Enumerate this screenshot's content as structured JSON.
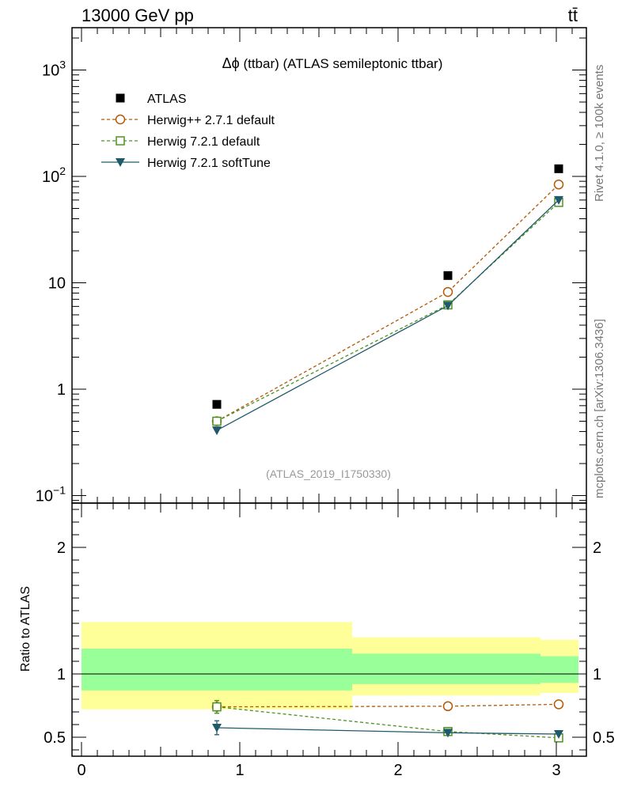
{
  "header": {
    "energy_label": "13000 GeV pp",
    "process_label": "tt̄"
  },
  "side_labels": {
    "rivet": "Rivet 4.1.0, ≥ 100k events",
    "source": "mcplots.cern.ch [arXiv:1306.3436]"
  },
  "chart_data": [
    {
      "type": "line",
      "title_prefix": "Δϕ",
      "title": " (ttbar) (ATLAS semileptonic ttbar)",
      "watermark": "(ATLAS_2019_I1750330)",
      "xlabel": "",
      "ylabel": "",
      "yscale": "log",
      "xlim": [
        -0.06,
        3.19
      ],
      "ylim": [
        0.085,
        2500
      ],
      "y_ticks": [
        {
          "value": 0.1,
          "base": "10",
          "exp": "−1"
        },
        {
          "value": 1,
          "base": "1",
          "exp": ""
        },
        {
          "value": 10,
          "base": "10",
          "exp": ""
        },
        {
          "value": 100,
          "base": "10",
          "exp": "2"
        },
        {
          "value": 1000,
          "base": "10",
          "exp": "3"
        }
      ],
      "legend": [
        {
          "label": "ATLAS",
          "color": "#000000",
          "marker": "square-filled"
        },
        {
          "label": "Herwig++ 2.7.1 default",
          "color": "#b35806",
          "marker": "circle-open",
          "dashed": true
        },
        {
          "label": "Herwig 7.2.1 default",
          "color": "#4d9221",
          "marker": "square-open",
          "dashed": true
        },
        {
          "label": "Herwig 7.2.1 softTune",
          "color": "#1f5a6a",
          "marker": "triangle-down",
          "dashed": false
        }
      ],
      "x": [
        0.855,
        2.315,
        3.015
      ],
      "series": [
        {
          "name": "ATLAS",
          "values": [
            0.72,
            11.7,
            118
          ]
        },
        {
          "name": "Herwig++ 2.7.1 default",
          "values": [
            0.5,
            8.2,
            84
          ]
        },
        {
          "name": "Herwig 7.2.1 default",
          "values": [
            0.5,
            6.2,
            57
          ]
        },
        {
          "name": "Herwig 7.2.1 softTune",
          "values": [
            0.41,
            6.1,
            60
          ]
        }
      ]
    },
    {
      "type": "line",
      "title": "",
      "xlabel": "",
      "ylabel": "Ratio to ATLAS",
      "xlim": [
        -0.06,
        3.19
      ],
      "ylim": [
        0.35,
        2.35
      ],
      "x_ticks": [
        "0",
        "1",
        "2",
        "3"
      ],
      "y_ticks": [
        "0.5",
        "1",
        "2"
      ],
      "bands": [
        {
          "x_range": [
            0.0,
            1.71
          ],
          "yellow": [
            0.72,
            1.41
          ],
          "green": [
            0.87,
            1.2
          ]
        },
        {
          "x_range": [
            1.71,
            2.9
          ],
          "yellow": [
            0.83,
            1.29
          ],
          "green": [
            0.92,
            1.16
          ]
        },
        {
          "x_range": [
            2.9,
            3.14
          ],
          "yellow": [
            0.85,
            1.27
          ],
          "green": [
            0.93,
            1.14
          ]
        }
      ],
      "x": [
        0.855,
        2.315,
        3.015
      ],
      "series": [
        {
          "name": "Herwig++ 2.7.1 default",
          "values": [
            0.74,
            0.745,
            0.76
          ],
          "err": [
            0.05,
            0,
            0
          ]
        },
        {
          "name": "Herwig 7.2.1 default",
          "values": [
            0.74,
            0.545,
            0.495
          ],
          "err": [
            0.05,
            0,
            0
          ]
        },
        {
          "name": "Herwig 7.2.1 softTune",
          "values": [
            0.575,
            0.535,
            0.525
          ],
          "err": [
            0.055,
            0,
            0
          ]
        }
      ]
    }
  ]
}
